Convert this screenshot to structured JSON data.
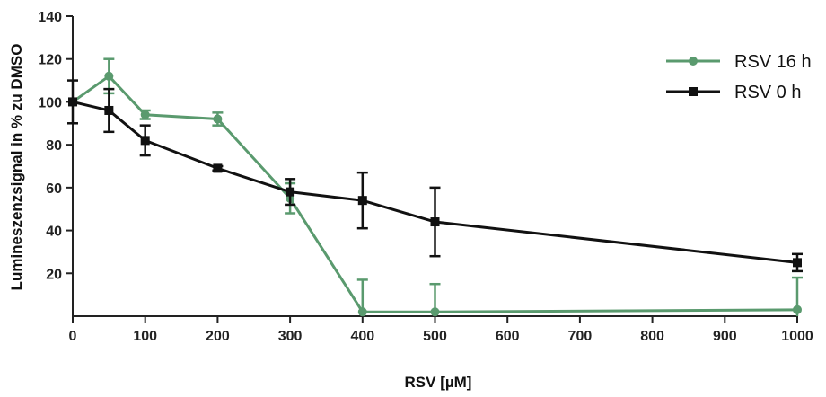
{
  "chart_data": {
    "type": "line",
    "title": "",
    "xlabel": "RSV [µM]",
    "ylabel": "Lumineszenzsignal in % zu DMSO",
    "xlim": [
      0,
      1000
    ],
    "ylim": [
      0,
      140
    ],
    "x_ticks": [
      "0",
      "100",
      "200",
      "300",
      "400",
      "500",
      "600",
      "700",
      "800",
      "900",
      "1000"
    ],
    "y_ticks": [
      "20",
      "40",
      "60",
      "80",
      "100",
      "120",
      "140"
    ],
    "grid": false,
    "legend_position": "top-right",
    "series": [
      {
        "name": "RSV 16 h",
        "color": "#5a9a6e",
        "marker": "circle",
        "points": [
          {
            "x": 0,
            "y": 100,
            "err": 0
          },
          {
            "x": 50,
            "y": 112,
            "err": 8
          },
          {
            "x": 100,
            "y": 94,
            "err": 2
          },
          {
            "x": 200,
            "y": 92,
            "err": 3
          },
          {
            "x": 300,
            "y": 55,
            "err": 7
          },
          {
            "x": 400,
            "y": 2,
            "err": 15
          },
          {
            "x": 500,
            "y": 2,
            "err": 13
          },
          {
            "x": 1000,
            "y": 3,
            "err": 15
          }
        ]
      },
      {
        "name": "RSV 0 h",
        "color": "#111111",
        "marker": "square",
        "points": [
          {
            "x": 0,
            "y": 100,
            "err": 10
          },
          {
            "x": 50,
            "y": 96,
            "err": 10
          },
          {
            "x": 100,
            "y": 82,
            "err": 7
          },
          {
            "x": 200,
            "y": 69,
            "err": 1
          },
          {
            "x": 300,
            "y": 58,
            "err": 6
          },
          {
            "x": 400,
            "y": 54,
            "err": 13
          },
          {
            "x": 500,
            "y": 44,
            "err": 16
          },
          {
            "x": 1000,
            "y": 25,
            "err": 4
          }
        ]
      }
    ]
  }
}
